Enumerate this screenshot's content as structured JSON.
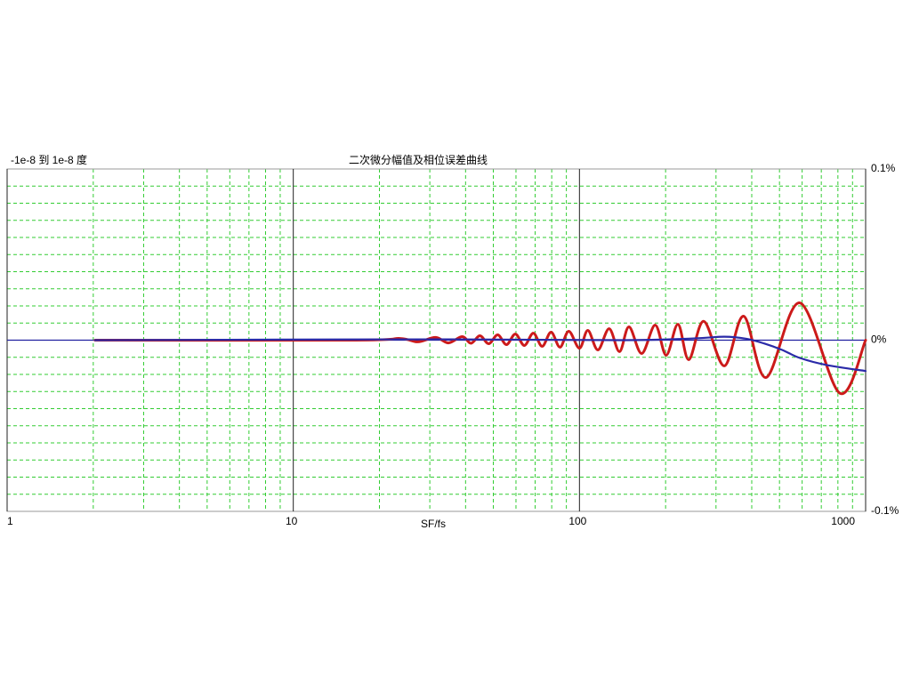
{
  "chart_data": {
    "type": "line",
    "title": "二次微分幅值及相位误差曲线",
    "annotation": "-1e-8 到 1e-8 度",
    "x_label": "SF/fs",
    "log_x": true,
    "xlim": [
      1,
      1000
    ],
    "xticks": [
      1,
      10,
      100,
      1000
    ],
    "xgrid": [
      2,
      3,
      4,
      5,
      6,
      7,
      8,
      9,
      20,
      30,
      40,
      50,
      60,
      70,
      80,
      90,
      200,
      300,
      400,
      500,
      600,
      700,
      800,
      900
    ],
    "ylim": [
      -0.1,
      0.1
    ],
    "yticks": [
      {
        "value": 0.1,
        "label": "0.1%"
      },
      {
        "value": 0,
        "label": "0%"
      },
      {
        "value": -0.1,
        "label": "-0.1%"
      }
    ],
    "ygrid": [
      -0.09,
      -0.08,
      -0.07,
      -0.06,
      -0.05,
      -0.04,
      -0.03,
      -0.02,
      -0.01,
      0.01,
      0.02,
      0.03,
      0.04,
      0.05,
      0.06,
      0.07,
      0.08,
      0.09
    ],
    "grid_color": "#33cc33",
    "zero_line_color": "#2020a0",
    "series": [
      {
        "color": "#cc1a1a",
        "x": [
          2.03,
          16.5,
          23.6,
          27.2,
          31.4,
          34.9,
          38.9,
          41.8,
          44.9,
          48.2,
          51.8,
          55.6,
          59.7,
          64.2,
          69,
          74.1,
          79.6,
          85.5,
          91.8,
          100,
          107,
          116,
          127,
          138,
          149,
          165,
          184,
          201,
          221,
          241,
          272,
          321,
          375,
          449,
          589,
          813,
          1000
        ],
        "values": [
          0,
          0,
          0.001,
          -0.001,
          0.0016,
          -0.0016,
          0.0021,
          -0.0018,
          0.0026,
          -0.0021,
          0.0031,
          -0.0026,
          0.0036,
          -0.0031,
          0.0041,
          -0.0036,
          0.0047,
          -0.0041,
          0.0052,
          -0.0047,
          0.0057,
          -0.0057,
          0.0067,
          -0.0067,
          0.0078,
          -0.0078,
          0.0088,
          -0.0088,
          0.0093,
          -0.0114,
          0.011,
          -0.015,
          0.014,
          -0.0218,
          0.0218,
          -0.031,
          0
        ]
      },
      {
        "color": "#2a2aa8",
        "x": [
          2.03,
          33.7,
          141,
          250,
          321,
          383,
          443,
          511,
          589,
          730,
          1000
        ],
        "values": [
          0,
          0.0005,
          0,
          0.001,
          0.002,
          0.0008,
          -0.002,
          -0.0057,
          -0.0104,
          -0.0145,
          -0.018
        ]
      }
    ]
  }
}
